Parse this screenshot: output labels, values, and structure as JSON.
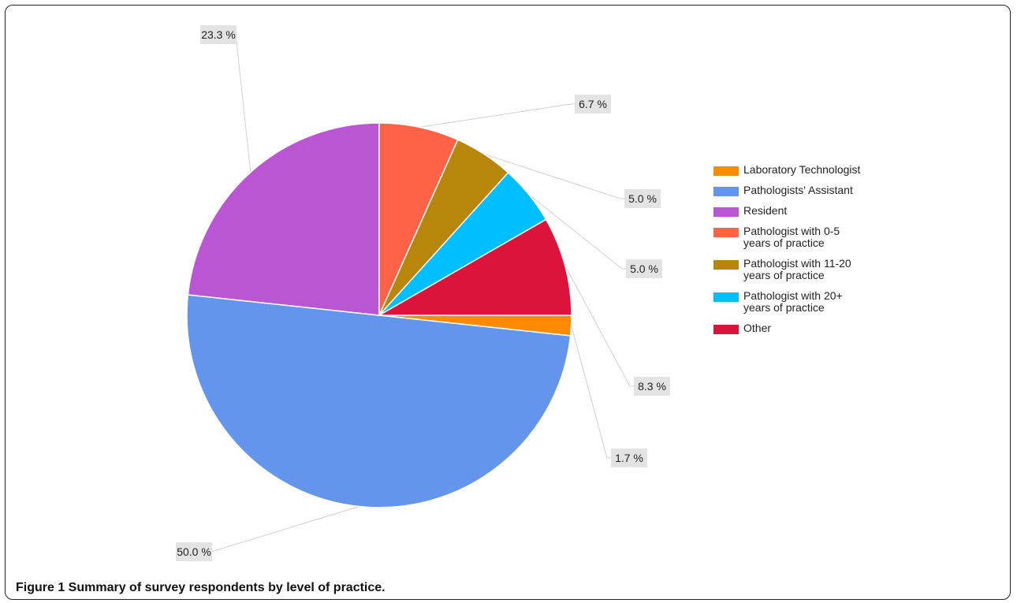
{
  "caption": {
    "text": "Figure 1 Summary of survey respondents by level of practice."
  },
  "chart_data": {
    "type": "pie",
    "slices": [
      {
        "name": "Laboratory Technologist",
        "value": 1.7,
        "label": "1.7 %",
        "color": "#FF8C00"
      },
      {
        "name": "Pathologists' Assistant",
        "value": 50.0,
        "label": "50.0 %",
        "color": "#6495ED"
      },
      {
        "name": "Resident",
        "value": 23.3,
        "label": "23.3 %",
        "color": "#BA55D3"
      },
      {
        "name": "Pathologist with 0-5\nyears of practice",
        "value": 6.7,
        "label": "6.7 %",
        "color": "#FF6347"
      },
      {
        "name": "Pathologist with 11-20\nyears of practice",
        "value": 5.0,
        "label": "5.0 %",
        "color": "#B8860B"
      },
      {
        "name": "Pathologist with 20+\nyears of practice",
        "value": 5.0,
        "label": "5.0 %",
        "color": "#00BFFF"
      },
      {
        "name": "Other",
        "value": 8.3,
        "label": "8.3 %",
        "color": "#DC143C"
      }
    ],
    "legend_position": "right"
  }
}
